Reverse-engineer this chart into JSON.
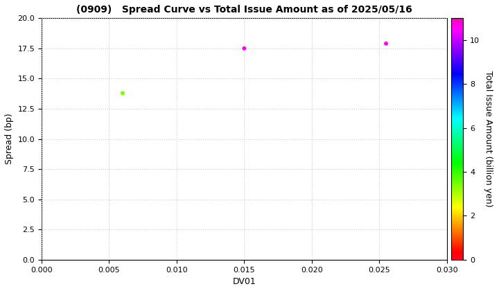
{
  "title": "(0909)   Spread Curve vs Total Issue Amount as of 2025/05/16",
  "xlabel": "DV01",
  "ylabel": "Spread (bp)",
  "colorbar_label": "Total Issue Amount (billion yen)",
  "x": [
    0.006,
    0.015,
    0.0255
  ],
  "y": [
    13.8,
    17.5,
    17.9
  ],
  "color_values": [
    3.5,
    10.5,
    10.5
  ],
  "cmap": "gist_rainbow",
  "clim": [
    0,
    11
  ],
  "xlim": [
    0.0,
    0.03
  ],
  "ylim": [
    0.0,
    20.0
  ],
  "xticks": [
    0.0,
    0.005,
    0.01,
    0.015,
    0.02,
    0.025,
    0.03
  ],
  "yticks": [
    0.0,
    2.5,
    5.0,
    7.5,
    10.0,
    12.5,
    15.0,
    17.5,
    20.0
  ],
  "colorbar_ticks": [
    0,
    2,
    4,
    6,
    8,
    10
  ],
  "marker_size": 18,
  "background_color": "#ffffff",
  "grid_color": "#cccccc",
  "grid_style": "dotted",
  "title_fontsize": 10,
  "axis_fontsize": 9,
  "tick_fontsize": 8
}
